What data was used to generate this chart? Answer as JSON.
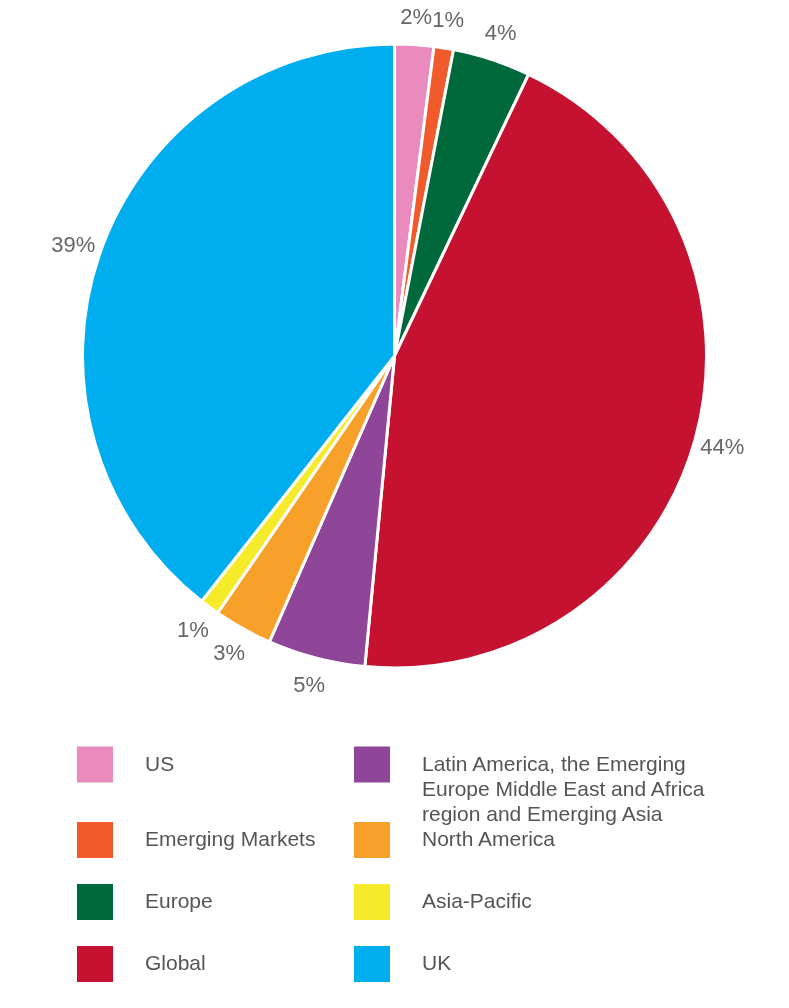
{
  "chart_data": {
    "type": "pie",
    "categories": [
      "US",
      "Emerging Markets",
      "Europe",
      "Global",
      "Latin America, the Emerging Europe Middle East and Africa region and Emerging Asia",
      "North America",
      "Asia-Pacific",
      "UK"
    ],
    "values": [
      2,
      1,
      4,
      44,
      5,
      3,
      1,
      39
    ],
    "value_labels": [
      "2%",
      "1%",
      "4%",
      "44%",
      "5%",
      "3%",
      "1%",
      "39%"
    ],
    "colors": [
      "#e98cbd",
      "#f15a2b",
      "#00693c",
      "#c41230",
      "#8f4598",
      "#f7a12b",
      "#f5eb2b",
      "#00adee"
    ],
    "legend": "bottom"
  }
}
